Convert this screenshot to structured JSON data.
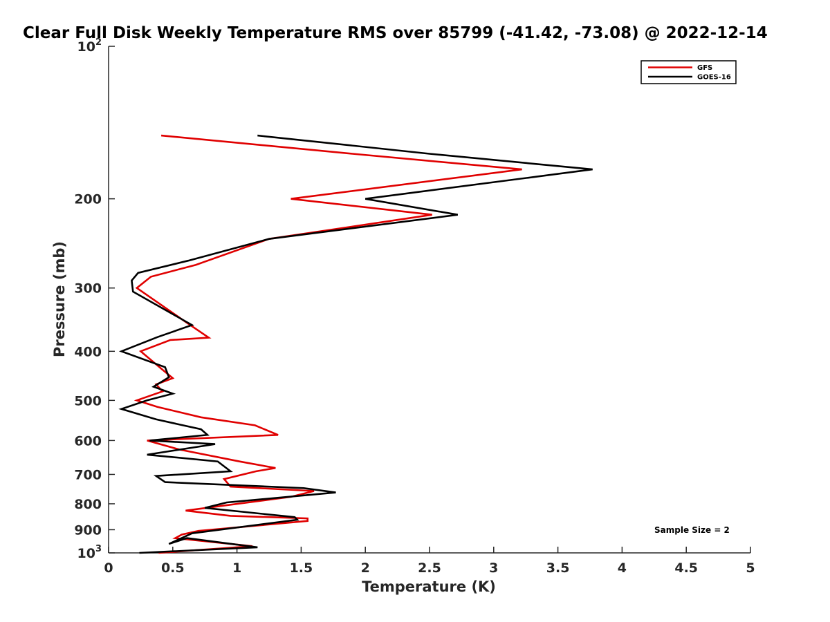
{
  "chart_data": {
    "type": "line",
    "title": "Clear Full Disk Weekly Temperature RMS over 85799 (-41.42, -73.08) @ 2022-12-14",
    "xlabel": "Temperature (K)",
    "ylabel": "Pressure (mb)",
    "xlim": [
      0,
      5
    ],
    "ylim": [
      100,
      1000
    ],
    "yscale": "log",
    "y_reversed": true,
    "x_ticks": [
      "0",
      "0.5",
      "1",
      "1.5",
      "2",
      "2.5",
      "3",
      "3.5",
      "4",
      "4.5",
      "5"
    ],
    "y_ticks": [
      {
        "value": 100,
        "base": "10",
        "exp": "2"
      },
      {
        "value": 200,
        "label": "200"
      },
      {
        "value": 300,
        "label": "300"
      },
      {
        "value": 400,
        "label": "400"
      },
      {
        "value": 500,
        "label": "500"
      },
      {
        "value": 600,
        "label": "600"
      },
      {
        "value": 700,
        "label": "700"
      },
      {
        "value": 800,
        "label": "800"
      },
      {
        "value": 900,
        "label": "900"
      },
      {
        "value": 1000,
        "base": "10",
        "exp": "3"
      }
    ],
    "legend_position": "top-right",
    "annotation": "Sample Size = 2",
    "series": [
      {
        "name": "GFS",
        "color": "#e00000",
        "points": [
          [
            0.41,
            150
          ],
          [
            1.9,
            163
          ],
          [
            3.22,
            175
          ],
          [
            1.42,
            200
          ],
          [
            2.52,
            215
          ],
          [
            1.25,
            240
          ],
          [
            0.68,
            270
          ],
          [
            0.33,
            285
          ],
          [
            0.22,
            300
          ],
          [
            0.38,
            320
          ],
          [
            0.6,
            350
          ],
          [
            0.78,
            376
          ],
          [
            0.48,
            380
          ],
          [
            0.25,
            400
          ],
          [
            0.42,
            435
          ],
          [
            0.5,
            452
          ],
          [
            0.37,
            465
          ],
          [
            0.42,
            480
          ],
          [
            0.22,
            500
          ],
          [
            0.38,
            515
          ],
          [
            0.72,
            540
          ],
          [
            1.14,
            560
          ],
          [
            1.32,
            585
          ],
          [
            0.3,
            600
          ],
          [
            0.55,
            625
          ],
          [
            1.02,
            660
          ],
          [
            1.3,
            680
          ],
          [
            1.15,
            690
          ],
          [
            0.9,
            715
          ],
          [
            0.95,
            740
          ],
          [
            1.6,
            755
          ],
          [
            1.42,
            775
          ],
          [
            0.6,
            825
          ],
          [
            0.95,
            845
          ],
          [
            1.55,
            855
          ],
          [
            1.55,
            865
          ],
          [
            0.7,
            905
          ],
          [
            0.57,
            920
          ],
          [
            0.52,
            935
          ],
          [
            1.12,
            970
          ],
          [
            0.39,
            1000
          ]
        ]
      },
      {
        "name": "GOES-16",
        "color": "#000000",
        "points": [
          [
            1.16,
            150
          ],
          [
            2.5,
            163
          ],
          [
            3.77,
            175
          ],
          [
            2.0,
            200
          ],
          [
            2.72,
            215
          ],
          [
            1.25,
            240
          ],
          [
            0.62,
            265
          ],
          [
            0.23,
            280
          ],
          [
            0.18,
            290
          ],
          [
            0.19,
            305
          ],
          [
            0.65,
            355
          ],
          [
            0.38,
            375
          ],
          [
            0.1,
            400
          ],
          [
            0.44,
            430
          ],
          [
            0.47,
            450
          ],
          [
            0.35,
            470
          ],
          [
            0.5,
            485
          ],
          [
            0.3,
            500
          ],
          [
            0.1,
            520
          ],
          [
            0.37,
            545
          ],
          [
            0.72,
            570
          ],
          [
            0.77,
            585
          ],
          [
            0.32,
            600
          ],
          [
            0.83,
            610
          ],
          [
            0.3,
            640
          ],
          [
            0.85,
            660
          ],
          [
            0.95,
            690
          ],
          [
            0.37,
            705
          ],
          [
            0.44,
            725
          ],
          [
            1.52,
            745
          ],
          [
            1.77,
            760
          ],
          [
            0.92,
            795
          ],
          [
            0.75,
            815
          ],
          [
            1.45,
            850
          ],
          [
            1.47,
            860
          ],
          [
            0.65,
            915
          ],
          [
            0.47,
            960
          ],
          [
            0.61,
            935
          ],
          [
            1.16,
            975
          ],
          [
            0.24,
            1000
          ]
        ]
      }
    ]
  }
}
